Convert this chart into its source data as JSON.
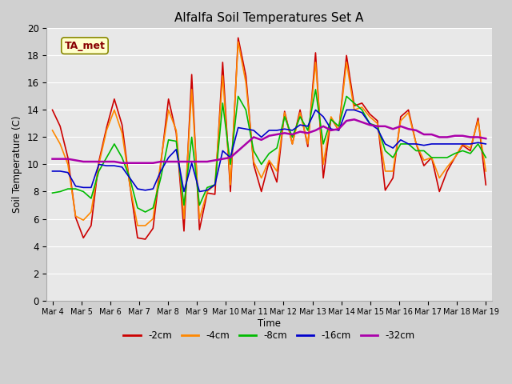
{
  "title": "Alfalfa Soil Temperatures Set A",
  "xlabel": "Time",
  "ylabel": "Soil Temperature (C)",
  "ylim": [
    0,
    20
  ],
  "yticks": [
    0,
    2,
    4,
    6,
    8,
    10,
    12,
    14,
    16,
    18,
    20
  ],
  "x_labels": [
    "Mar 4",
    "Mar 5",
    "Mar 6",
    "Mar 7",
    "Mar 8",
    "Mar 9",
    "Mar 10",
    "Mar 11",
    "Mar 12",
    "Mar 13",
    "Mar 14",
    "Mar 15",
    "Mar 16",
    "Mar 17",
    "Mar 18",
    "Mar 19"
  ],
  "annotation": "TA_met",
  "fig_bg": "#d0d0d0",
  "plot_bg": "#e8e8e8",
  "grid_color": "#ffffff",
  "series_order": [
    "-2cm",
    "-4cm",
    "-8cm",
    "-16cm",
    "-32cm"
  ],
  "series_colors": [
    "#cc0000",
    "#ff8800",
    "#00bb00",
    "#0000cc",
    "#aa00aa"
  ],
  "series_lw": [
    1.2,
    1.2,
    1.2,
    1.2,
    1.8
  ],
  "data": {
    "-2cm": [
      14.0,
      12.8,
      10.5,
      6.1,
      4.6,
      5.5,
      10.2,
      12.7,
      14.8,
      12.9,
      8.5,
      4.6,
      4.5,
      5.3,
      10.0,
      14.8,
      12.3,
      5.1,
      16.6,
      5.2,
      7.9,
      7.8,
      17.5,
      8.0,
      19.3,
      16.5,
      10.0,
      8.0,
      10.2,
      8.7,
      13.9,
      11.5,
      14.0,
      11.3,
      18.2,
      9.0,
      13.4,
      12.5,
      18.0,
      14.3,
      14.5,
      13.7,
      13.2,
      8.1,
      9.0,
      13.5,
      14.0,
      11.5,
      9.9,
      10.5,
      8.0,
      9.5,
      10.5,
      11.4,
      11.0,
      13.4,
      8.5
    ],
    "-4cm": [
      12.5,
      11.5,
      10.0,
      6.2,
      5.9,
      6.5,
      10.0,
      12.5,
      14.0,
      12.3,
      8.5,
      5.5,
      5.5,
      6.0,
      10.2,
      14.0,
      12.5,
      6.0,
      15.5,
      6.0,
      8.0,
      8.5,
      16.5,
      8.5,
      19.0,
      16.0,
      10.2,
      9.0,
      10.3,
      9.5,
      13.8,
      11.5,
      13.8,
      11.5,
      17.5,
      10.0,
      13.5,
      12.5,
      17.5,
      14.0,
      14.2,
      13.5,
      13.0,
      9.5,
      9.5,
      13.2,
      13.8,
      11.5,
      10.3,
      10.5,
      9.0,
      9.8,
      10.5,
      11.5,
      11.2,
      13.2,
      9.5
    ],
    "-8cm": [
      7.9,
      8.0,
      8.2,
      8.2,
      8.0,
      7.5,
      9.5,
      10.5,
      11.5,
      10.5,
      9.0,
      6.8,
      6.5,
      6.8,
      9.0,
      11.8,
      11.7,
      7.0,
      12.0,
      7.0,
      8.3,
      8.5,
      14.5,
      10.0,
      15.0,
      14.0,
      11.0,
      10.0,
      10.8,
      11.2,
      13.5,
      12.0,
      13.5,
      12.5,
      15.5,
      11.5,
      13.3,
      12.8,
      15.0,
      14.5,
      14.0,
      13.0,
      12.8,
      11.0,
      10.5,
      11.5,
      11.5,
      11.0,
      11.0,
      10.5,
      10.5,
      10.5,
      10.8,
      11.0,
      10.8,
      11.5,
      10.5
    ],
    "-16cm": [
      9.5,
      9.5,
      9.4,
      8.4,
      8.3,
      8.3,
      10.0,
      9.9,
      9.9,
      9.8,
      9.0,
      8.2,
      8.1,
      8.2,
      9.5,
      10.5,
      11.1,
      8.0,
      10.1,
      8.0,
      8.1,
      8.5,
      11.0,
      10.5,
      12.7,
      12.6,
      12.5,
      12.0,
      12.5,
      12.5,
      12.6,
      12.5,
      12.9,
      12.8,
      14.0,
      13.5,
      12.6,
      12.5,
      14.0,
      14.0,
      13.8,
      13.0,
      12.6,
      11.5,
      11.2,
      11.8,
      11.5,
      11.5,
      11.4,
      11.5,
      11.5,
      11.5,
      11.5,
      11.5,
      11.5,
      11.6,
      11.5
    ],
    "-32cm": [
      10.4,
      10.4,
      10.4,
      10.3,
      10.2,
      10.2,
      10.2,
      10.2,
      10.2,
      10.1,
      10.1,
      10.1,
      10.1,
      10.1,
      10.2,
      10.2,
      10.2,
      10.2,
      10.2,
      10.2,
      10.2,
      10.3,
      10.4,
      10.5,
      11.0,
      11.5,
      12.0,
      11.8,
      12.1,
      12.2,
      12.3,
      12.2,
      12.4,
      12.3,
      12.5,
      12.8,
      12.5,
      12.6,
      13.2,
      13.3,
      13.1,
      12.9,
      12.8,
      12.8,
      12.6,
      12.8,
      12.6,
      12.5,
      12.2,
      12.2,
      12.0,
      12.0,
      12.1,
      12.1,
      12.0,
      12.0,
      11.9
    ]
  }
}
